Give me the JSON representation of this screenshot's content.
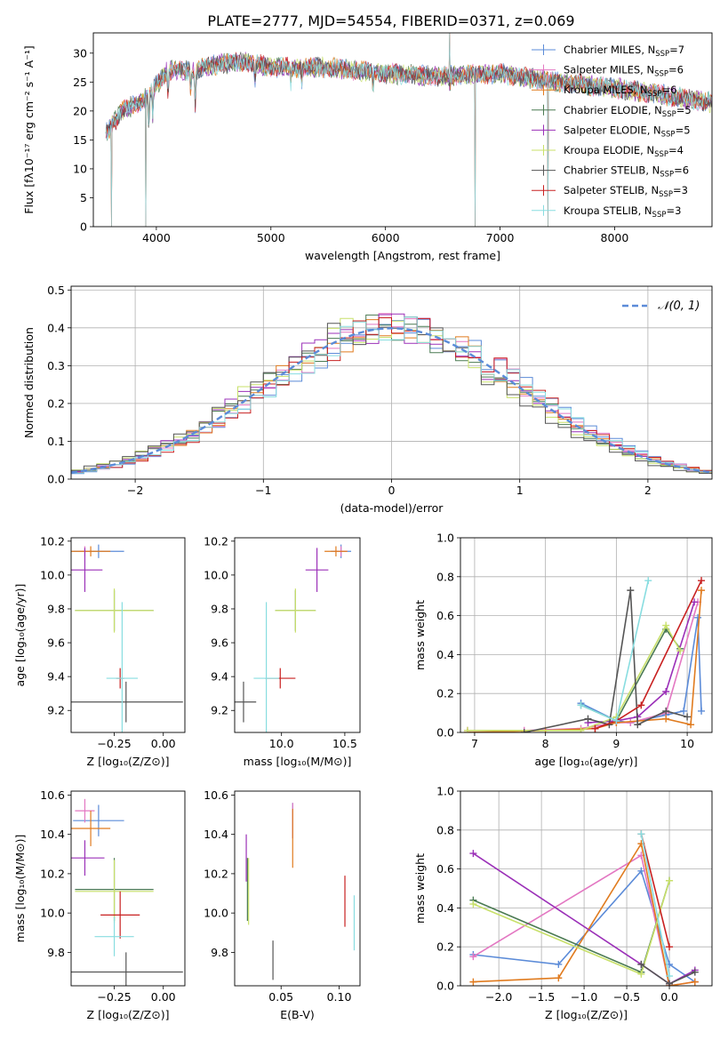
{
  "figure": {
    "title": "PLATE=2777, MJD=54554, FIBERID=0371, z=0.069"
  },
  "chart_data": [
    {
      "type": "line",
      "id": "spectrum",
      "xlabel": "wavelength [Angstrom, rest frame]",
      "ylabel": "Flux [fλ10⁻¹⁷ erg cm⁻² s⁻¹ A⁻¹]",
      "xlim": [
        3450,
        8850
      ],
      "ylim": [
        0,
        33.5
      ],
      "xticks": [
        4000,
        5000,
        6000,
        7000,
        8000
      ],
      "yticks": [
        0,
        5,
        10,
        15,
        20,
        25,
        30
      ],
      "legend_position": "top-right",
      "continuum": {
        "x": [
          3550,
          3700,
          3900,
          4000,
          4100,
          4300,
          4500,
          4800,
          5000,
          5500,
          6000,
          6500,
          7000,
          7500,
          8000,
          8500,
          8850
        ],
        "y": [
          16,
          20,
          22,
          24.5,
          27,
          27,
          28,
          28.5,
          27.5,
          27.5,
          26.5,
          26,
          26.5,
          25,
          24,
          22.5,
          21.5
        ]
      },
      "absorption_lines": [
        {
          "x": 3934,
          "depth": 6
        },
        {
          "x": 3969,
          "depth": 5
        },
        {
          "x": 4102,
          "depth": 4
        },
        {
          "x": 4300,
          "depth": 4
        },
        {
          "x": 4340,
          "depth": 6
        },
        {
          "x": 4861,
          "depth": 3
        },
        {
          "x": 5175,
          "depth": 3
        },
        {
          "x": 5270,
          "depth": 2
        },
        {
          "x": 5890,
          "depth": 3
        },
        {
          "x": 6563,
          "depth": 2
        }
      ],
      "spikes": [
        {
          "x": 3610,
          "y": 0
        },
        {
          "x": 3910,
          "y": 0
        },
        {
          "x": 6780,
          "y": 0
        },
        {
          "x": 7420,
          "y": 0
        },
        {
          "x": 6560,
          "y": 33.5
        }
      ],
      "series": [
        {
          "name": "Chabrier MILES, N",
          "sub": "SSP",
          "tail": "=7",
          "color": "#5b8bd8"
        },
        {
          "name": "Salpeter MILES, N",
          "sub": "SSP",
          "tail": "=6",
          "color": "#e377c2"
        },
        {
          "name": "Kroupa MILES, N",
          "sub": "SSP",
          "tail": "=6",
          "color": "#e07b1f"
        },
        {
          "name": "Chabrier ELODIE, N",
          "sub": "SSP",
          "tail": "=5",
          "color": "#4a7a52"
        },
        {
          "name": "Salpeter ELODIE, N",
          "sub": "SSP",
          "tail": "=5",
          "color": "#9b30b8"
        },
        {
          "name": "Kroupa ELODIE, N",
          "sub": "SSP",
          "tail": "=4",
          "color": "#c8e06a"
        },
        {
          "name": "Chabrier STELIB, N",
          "sub": "SSP",
          "tail": "=6",
          "color": "#555555"
        },
        {
          "name": "Salpeter STELIB, N",
          "sub": "SSP",
          "tail": "=3",
          "color": "#c82020"
        },
        {
          "name": "Kroupa STELIB, N",
          "sub": "SSP",
          "tail": "=3",
          "color": "#88dde0"
        }
      ]
    },
    {
      "type": "histogram",
      "id": "residuals",
      "xlabel": "(data-model)/error",
      "ylabel": "Normed distribution",
      "xlim": [
        -2.5,
        2.5
      ],
      "ylim": [
        0,
        0.51
      ],
      "xticks": [
        -2,
        -1,
        0,
        1,
        2
      ],
      "yticks": [
        0.0,
        0.1,
        0.2,
        0.3,
        0.4,
        0.5
      ],
      "bin_width": 0.1,
      "grid": true,
      "legend_position": "top-right",
      "reference": {
        "name": "𝒩(0, 1)",
        "color": "#5b8bd8",
        "dash": true
      }
    },
    {
      "type": "errorbar",
      "id": "age-vs-metallicity",
      "xlabel": "Z [log₁₀(Z/Z⊙)]",
      "ylabel": "age  [log₁₀(age/yr)]",
      "xlim": [
        -0.47,
        0.11
      ],
      "ylim": [
        9.07,
        10.22
      ],
      "xticks": [
        -0.25,
        0.0
      ],
      "yticks": [
        9.2,
        9.4,
        9.6,
        9.8,
        10.0,
        10.2
      ],
      "points": [
        {
          "series": 0,
          "x": -0.33,
          "xerr": 0.13,
          "y": 10.14,
          "yerr": 0.04
        },
        {
          "series": 1,
          "x": -0.4,
          "xerr": 0.03,
          "y": 10.14,
          "yerr": 0.03
        },
        {
          "series": 2,
          "x": -0.37,
          "xerr": 0.1,
          "y": 10.14,
          "yerr": 0.03
        },
        {
          "series": 3,
          "x": -0.25,
          "xerr": 0.2,
          "y": 9.79,
          "yerr": 0.12
        },
        {
          "series": 4,
          "x": -0.4,
          "xerr": 0.09,
          "y": 10.03,
          "yerr": 0.13
        },
        {
          "series": 5,
          "x": -0.25,
          "xerr": 0.2,
          "y": 9.79,
          "yerr": 0.13
        },
        {
          "series": 6,
          "x": -0.19,
          "xerr": 0.29,
          "y": 9.25,
          "yerr": 0.12
        },
        {
          "series": 7,
          "x": -0.22,
          "xerr": 0.02,
          "y": 9.39,
          "yerr": 0.06
        },
        {
          "series": 8,
          "x": -0.21,
          "xerr": 0.08,
          "y": 9.39,
          "yerr": 0.45
        }
      ]
    },
    {
      "type": "errorbar",
      "id": "age-vs-mass",
      "xlabel": "mass [log₁₀(M/M⊙)]",
      "ylabel": "",
      "xlim": [
        9.63,
        10.62
      ],
      "ylim": [
        9.07,
        10.22
      ],
      "xticks": [
        10.0,
        10.5
      ],
      "yticks": [
        9.2,
        9.4,
        9.6,
        9.8,
        10.0,
        10.2
      ],
      "points": [
        {
          "series": 0,
          "x": 10.47,
          "xerr": 0.08,
          "y": 10.14,
          "yerr": 0.04
        },
        {
          "series": 1,
          "x": 10.47,
          "xerr": 0.05,
          "y": 10.14,
          "yerr": 0.03
        },
        {
          "series": 2,
          "x": 10.43,
          "xerr": 0.09,
          "y": 10.14,
          "yerr": 0.03
        },
        {
          "series": 3,
          "x": 10.11,
          "xerr": 0.16,
          "y": 9.79,
          "yerr": 0.12
        },
        {
          "series": 4,
          "x": 10.28,
          "xerr": 0.09,
          "y": 10.03,
          "yerr": 0.13
        },
        {
          "series": 5,
          "x": 10.11,
          "xerr": 0.16,
          "y": 9.79,
          "yerr": 0.13
        },
        {
          "series": 6,
          "x": 9.7,
          "xerr": 0.1,
          "y": 9.25,
          "yerr": 0.12
        },
        {
          "series": 7,
          "x": 9.99,
          "xerr": 0.12,
          "y": 9.39,
          "yerr": 0.06
        },
        {
          "series": 8,
          "x": 9.88,
          "xerr": 0.1,
          "y": 9.39,
          "yerr": 0.45
        }
      ]
    },
    {
      "type": "line",
      "id": "weight-vs-age",
      "xlabel": "age  [log₁₀(age/yr)]",
      "ylabel": "mass weight",
      "xlim": [
        6.8,
        10.35
      ],
      "ylim": [
        0,
        1
      ],
      "xticks": [
        7,
        8,
        9,
        10
      ],
      "yticks": [
        0.0,
        0.2,
        0.4,
        0.6,
        0.8,
        1.0
      ],
      "grid": true,
      "series": [
        {
          "series": 0,
          "x": [
            8.5,
            9.0,
            9.2,
            9.7,
            9.95,
            10.15,
            10.2
          ],
          "y": [
            0.15,
            0.06,
            0.05,
            0.09,
            0.11,
            0.59,
            0.11
          ]
        },
        {
          "series": 1,
          "x": [
            6.9,
            7.7,
            8.5,
            9.0,
            9.2,
            9.7,
            10.15
          ],
          "y": [
            0.01,
            0.01,
            0.02,
            0.05,
            0.05,
            0.1,
            0.67
          ]
        },
        {
          "series": 2,
          "x": [
            6.9,
            8.0,
            8.7,
            9.0,
            9.7,
            10.05,
            10.2
          ],
          "y": [
            0.0,
            0.01,
            0.02,
            0.05,
            0.07,
            0.04,
            0.73
          ]
        },
        {
          "series": 3,
          "x": [
            8.5,
            9.0,
            9.7,
            9.9
          ],
          "y": [
            0.14,
            0.06,
            0.53,
            0.43
          ]
        },
        {
          "series": 4,
          "x": [
            8.6,
            9.0,
            9.3,
            9.7,
            10.1
          ],
          "y": [
            0.05,
            0.06,
            0.08,
            0.21,
            0.67
          ]
        },
        {
          "series": 5,
          "x": [
            6.9,
            8.5,
            9.0,
            9.7,
            9.9
          ],
          "y": [
            0.01,
            0.01,
            0.08,
            0.55,
            0.42
          ]
        },
        {
          "series": 6,
          "x": [
            7.7,
            8.6,
            8.9,
            9.2,
            9.3,
            9.7,
            10.0
          ],
          "y": [
            0.0,
            0.07,
            0.04,
            0.73,
            0.04,
            0.11,
            0.08
          ]
        },
        {
          "series": 7,
          "x": [
            8.7,
            9.0,
            9.35,
            10.2
          ],
          "y": [
            0.02,
            0.06,
            0.14,
            0.78
          ]
        },
        {
          "series": 8,
          "x": [
            8.5,
            9.0,
            9.45
          ],
          "y": [
            0.14,
            0.06,
            0.78
          ]
        }
      ]
    },
    {
      "type": "errorbar",
      "id": "mass-vs-metallicity",
      "xlabel": "Z [log₁₀(Z/Z⊙)]",
      "ylabel": "mass [log₁₀(M/M⊙)]",
      "xlim": [
        -0.47,
        0.11
      ],
      "ylim": [
        9.63,
        10.62
      ],
      "xticks": [
        -0.25,
        0.0
      ],
      "yticks": [
        9.8,
        10.0,
        10.2,
        10.4,
        10.6
      ],
      "points": [
        {
          "series": 0,
          "x": -0.33,
          "xerr": 0.13,
          "y": 10.47,
          "yerr": 0.08
        },
        {
          "series": 1,
          "x": -0.4,
          "xerr": 0.05,
          "y": 10.52,
          "yerr": 0.06
        },
        {
          "series": 2,
          "x": -0.37,
          "xerr": 0.1,
          "y": 10.43,
          "yerr": 0.09
        },
        {
          "series": 3,
          "x": -0.25,
          "xerr": 0.2,
          "y": 10.12,
          "yerr": 0.16
        },
        {
          "series": 4,
          "x": -0.4,
          "xerr": 0.1,
          "y": 10.28,
          "yerr": 0.09
        },
        {
          "series": 5,
          "x": -0.25,
          "xerr": 0.2,
          "y": 10.11,
          "yerr": 0.16
        },
        {
          "series": 6,
          "x": -0.19,
          "xerr": 0.29,
          "y": 9.7,
          "yerr": 0.1
        },
        {
          "series": 7,
          "x": -0.22,
          "xerr": 0.1,
          "y": 9.99,
          "yerr": 0.12
        },
        {
          "series": 8,
          "x": -0.25,
          "xerr": 0.1,
          "y": 9.88,
          "yerr": 0.1
        }
      ]
    },
    {
      "type": "errorbar",
      "id": "mass-vs-extinction",
      "xlabel": "E(B-V)",
      "ylabel": "",
      "xlim": [
        0.01,
        0.118
      ],
      "ylim": [
        9.63,
        10.62
      ],
      "xticks": [
        0.05,
        0.1
      ],
      "yticks": [
        9.8,
        10.0,
        10.2,
        10.4,
        10.6
      ],
      "points": [
        {
          "series": 0,
          "x": 0.06,
          "y": 10.47,
          "yerr": 0.09
        },
        {
          "series": 1,
          "x": 0.06,
          "y": 10.47,
          "yerr": 0.09
        },
        {
          "series": 2,
          "x": 0.06,
          "y": 10.38,
          "yerr": 0.15
        },
        {
          "series": 3,
          "x": 0.021,
          "y": 10.12,
          "yerr": 0.16
        },
        {
          "series": 4,
          "x": 0.02,
          "y": 10.28,
          "yerr": 0.12
        },
        {
          "series": 5,
          "x": 0.022,
          "y": 10.11,
          "yerr": 0.17
        },
        {
          "series": 6,
          "x": 0.043,
          "y": 9.76,
          "yerr": 0.1
        },
        {
          "series": 7,
          "x": 0.105,
          "y": 10.06,
          "yerr": 0.13
        },
        {
          "series": 8,
          "x": 0.113,
          "y": 9.95,
          "yerr": 0.14
        }
      ]
    },
    {
      "type": "line",
      "id": "weight-vs-metallicity",
      "xlabel": "Z [log₁₀(Z/Z⊙)]",
      "ylabel": "mass weight",
      "xlim": [
        -2.45,
        0.5
      ],
      "ylim": [
        0,
        1
      ],
      "xticks": [
        -2.0,
        -1.5,
        -1.0,
        -0.5,
        0.0
      ],
      "yticks": [
        0.0,
        0.2,
        0.4,
        0.6,
        0.8,
        1.0
      ],
      "grid": true,
      "series": [
        {
          "series": 0,
          "x": [
            -2.3,
            -1.3,
            -0.33,
            0.0,
            0.3
          ],
          "y": [
            0.16,
            0.11,
            0.59,
            0.11,
            0.02
          ]
        },
        {
          "series": 1,
          "x": [
            -2.3,
            -0.33,
            0.0,
            0.3
          ],
          "y": [
            0.15,
            0.67,
            0.0,
            0.02
          ]
        },
        {
          "series": 2,
          "x": [
            -2.3,
            -1.3,
            -0.33,
            0.0,
            0.3
          ],
          "y": [
            0.02,
            0.04,
            0.73,
            0.0,
            0.02
          ]
        },
        {
          "series": 3,
          "x": [
            -2.3,
            -0.33,
            0.0
          ],
          "y": [
            0.44,
            0.07,
            0.54
          ]
        },
        {
          "series": 4,
          "x": [
            -2.3,
            -0.33,
            0.0,
            0.3
          ],
          "y": [
            0.68,
            0.11,
            0.01,
            0.08
          ]
        },
        {
          "series": 5,
          "x": [
            -2.3,
            -0.33,
            0.0
          ],
          "y": [
            0.42,
            0.06,
            0.54
          ]
        },
        {
          "series": 6,
          "x": [
            -0.33,
            0.0,
            0.3
          ],
          "y": [
            0.11,
            0.01,
            0.07
          ]
        },
        {
          "series": 7,
          "x": [
            -0.33,
            0.0
          ],
          "y": [
            0.78,
            0.2
          ]
        },
        {
          "series": 8,
          "x": [
            -0.33,
            0.0
          ],
          "y": [
            0.78,
            0.05
          ]
        }
      ]
    }
  ]
}
